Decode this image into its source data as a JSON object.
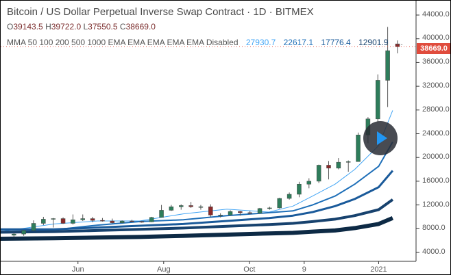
{
  "header": {
    "title": "Bitcoin / US Dollar Perpetual Inverse Swap Contract · 1D · BITMEX",
    "ohlc": {
      "o": "39143.5",
      "h": "39722.0",
      "l": "37550.5",
      "c": "38669.0"
    },
    "indicator_label": "MMA 50 100 200 500 1000 EMA EMA EMA EMA EMA Disabled",
    "indicator_values": [
      "27930.7",
      "22617.1",
      "17776.4",
      "12901.9"
    ],
    "indicator_values_truncated": "..."
  },
  "price_label": "38669.0",
  "colors": {
    "up": "#26a69a",
    "down": "#ef5350",
    "candle": "#333333",
    "price_label": "#e04c3d",
    "ma": [
      "#42a5f5",
      "#1e6fb8",
      "#1a5a9a",
      "#17426e",
      "#0d2a45"
    ]
  },
  "play_button": {
    "icon": "play-icon"
  },
  "chart_data": {
    "type": "candlestick",
    "y_ticks": [
      "44000.0",
      "40000.0",
      "36000.0",
      "32000.0",
      "28000.0",
      "24000.0",
      "20000.0",
      "16000.0",
      "12000.0",
      "8000.0",
      "4000.0"
    ],
    "x_ticks": [
      {
        "label": "Jun",
        "date": "2020-06-01"
      },
      {
        "label": "Aug",
        "date": "2020-08-01"
      },
      {
        "label": "Oct",
        "date": "2020-10-01"
      },
      {
        "label": "9",
        "date": "2020-11-09"
      },
      {
        "label": "2021",
        "date": "2021-01-01"
      }
    ],
    "ylim": [
      2800,
      46000
    ],
    "candles": [
      [
        "2020-04-13",
        6900,
        7300,
        6600,
        7100
      ],
      [
        "2020-04-20",
        7100,
        7800,
        6800,
        7700
      ],
      [
        "2020-04-27",
        7700,
        9400,
        7600,
        8900
      ],
      [
        "2020-05-04",
        8900,
        10000,
        8600,
        9600
      ],
      [
        "2020-05-11",
        9600,
        9800,
        8200,
        9700
      ],
      [
        "2020-05-18",
        9700,
        9900,
        8800,
        8900
      ],
      [
        "2020-05-25",
        8900,
        10400,
        8700,
        9500
      ],
      [
        "2020-06-01",
        9500,
        10400,
        9300,
        9700
      ],
      [
        "2020-06-08",
        9700,
        10000,
        9100,
        9400
      ],
      [
        "2020-06-15",
        9400,
        9800,
        9200,
        9300
      ],
      [
        "2020-06-22",
        9300,
        9700,
        8900,
        9000
      ],
      [
        "2020-06-29",
        9000,
        9400,
        8900,
        9300
      ],
      [
        "2020-07-06",
        9300,
        9500,
        9100,
        9200
      ],
      [
        "2020-07-13",
        9200,
        9300,
        9000,
        9150
      ],
      [
        "2020-07-20",
        9150,
        10000,
        9100,
        9900
      ],
      [
        "2020-07-27",
        9900,
        12000,
        9900,
        11100
      ],
      [
        "2020-08-03",
        11100,
        12000,
        11000,
        11700
      ],
      [
        "2020-08-10",
        11700,
        12100,
        11200,
        11900
      ],
      [
        "2020-08-17",
        11900,
        12500,
        11500,
        11700
      ],
      [
        "2020-08-24",
        11700,
        12000,
        11200,
        11700
      ],
      [
        "2020-08-31",
        11700,
        12100,
        10000,
        10300
      ],
      [
        "2020-09-07",
        10300,
        10600,
        9900,
        10300
      ],
      [
        "2020-09-14",
        10300,
        11100,
        10200,
        10900
      ],
      [
        "2020-09-21",
        10900,
        11000,
        10200,
        10700
      ],
      [
        "2020-09-28",
        10700,
        11000,
        10400,
        10600
      ],
      [
        "2020-10-05",
        10600,
        11500,
        10500,
        11400
      ],
      [
        "2020-10-12",
        11400,
        11700,
        11200,
        11500
      ],
      [
        "2020-10-19",
        11500,
        13200,
        11400,
        13100
      ],
      [
        "2020-10-26",
        13100,
        14100,
        12900,
        13800
      ],
      [
        "2020-11-02",
        13800,
        15900,
        13300,
        15500
      ],
      [
        "2020-11-09",
        15500,
        16500,
        14800,
        16000
      ],
      [
        "2020-11-16",
        16000,
        18800,
        15700,
        18700
      ],
      [
        "2020-11-23",
        18700,
        19400,
        16300,
        18200
      ],
      [
        "2020-11-30",
        18200,
        19900,
        18000,
        19200
      ],
      [
        "2020-12-07",
        19200,
        19500,
        17600,
        19300
      ],
      [
        "2020-12-14",
        19300,
        24200,
        19300,
        23800
      ],
      [
        "2020-12-21",
        23800,
        26800,
        22400,
        26500
      ],
      [
        "2020-12-28",
        26500,
        34000,
        25900,
        33000
      ],
      [
        "2021-01-04",
        33000,
        42000,
        28500,
        38000
      ],
      [
        "2021-01-11",
        39143.5,
        39722.0,
        37550.5,
        38669.0
      ]
    ],
    "ma_dates": [
      "2020-04-07",
      "2020-05-15",
      "2020-06-15",
      "2020-07-15",
      "2020-08-15",
      "2020-09-15",
      "2020-10-15",
      "2020-11-01",
      "2020-11-15",
      "2020-12-01",
      "2020-12-15",
      "2021-01-01",
      "2021-01-11"
    ],
    "series": [
      {
        "values": [
          7500,
          8800,
          9300,
          9300,
          10500,
          11300,
          10800,
          11800,
          13500,
          15500,
          18000,
          22000,
          27930.7
        ]
      },
      {
        "values": [
          7800,
          7800,
          8600,
          9200,
          9500,
          10200,
          10700,
          11000,
          12000,
          13500,
          15500,
          18500,
          22617.1
        ]
      },
      {
        "values": [
          7900,
          7900,
          8200,
          8500,
          8800,
          9300,
          9800,
          10200,
          10800,
          11800,
          13000,
          15000,
          17776.4
        ]
      },
      {
        "values": [
          7400,
          7500,
          7700,
          7900,
          8100,
          8400,
          8700,
          8900,
          9200,
          9600,
          10200,
          11200,
          12901.9
        ]
      },
      {
        "values": [
          6300,
          6400,
          6500,
          6600,
          6800,
          7000,
          7200,
          7300,
          7500,
          7700,
          8100,
          8800,
          9800
        ]
      }
    ],
    "last_price": 38669.0
  }
}
